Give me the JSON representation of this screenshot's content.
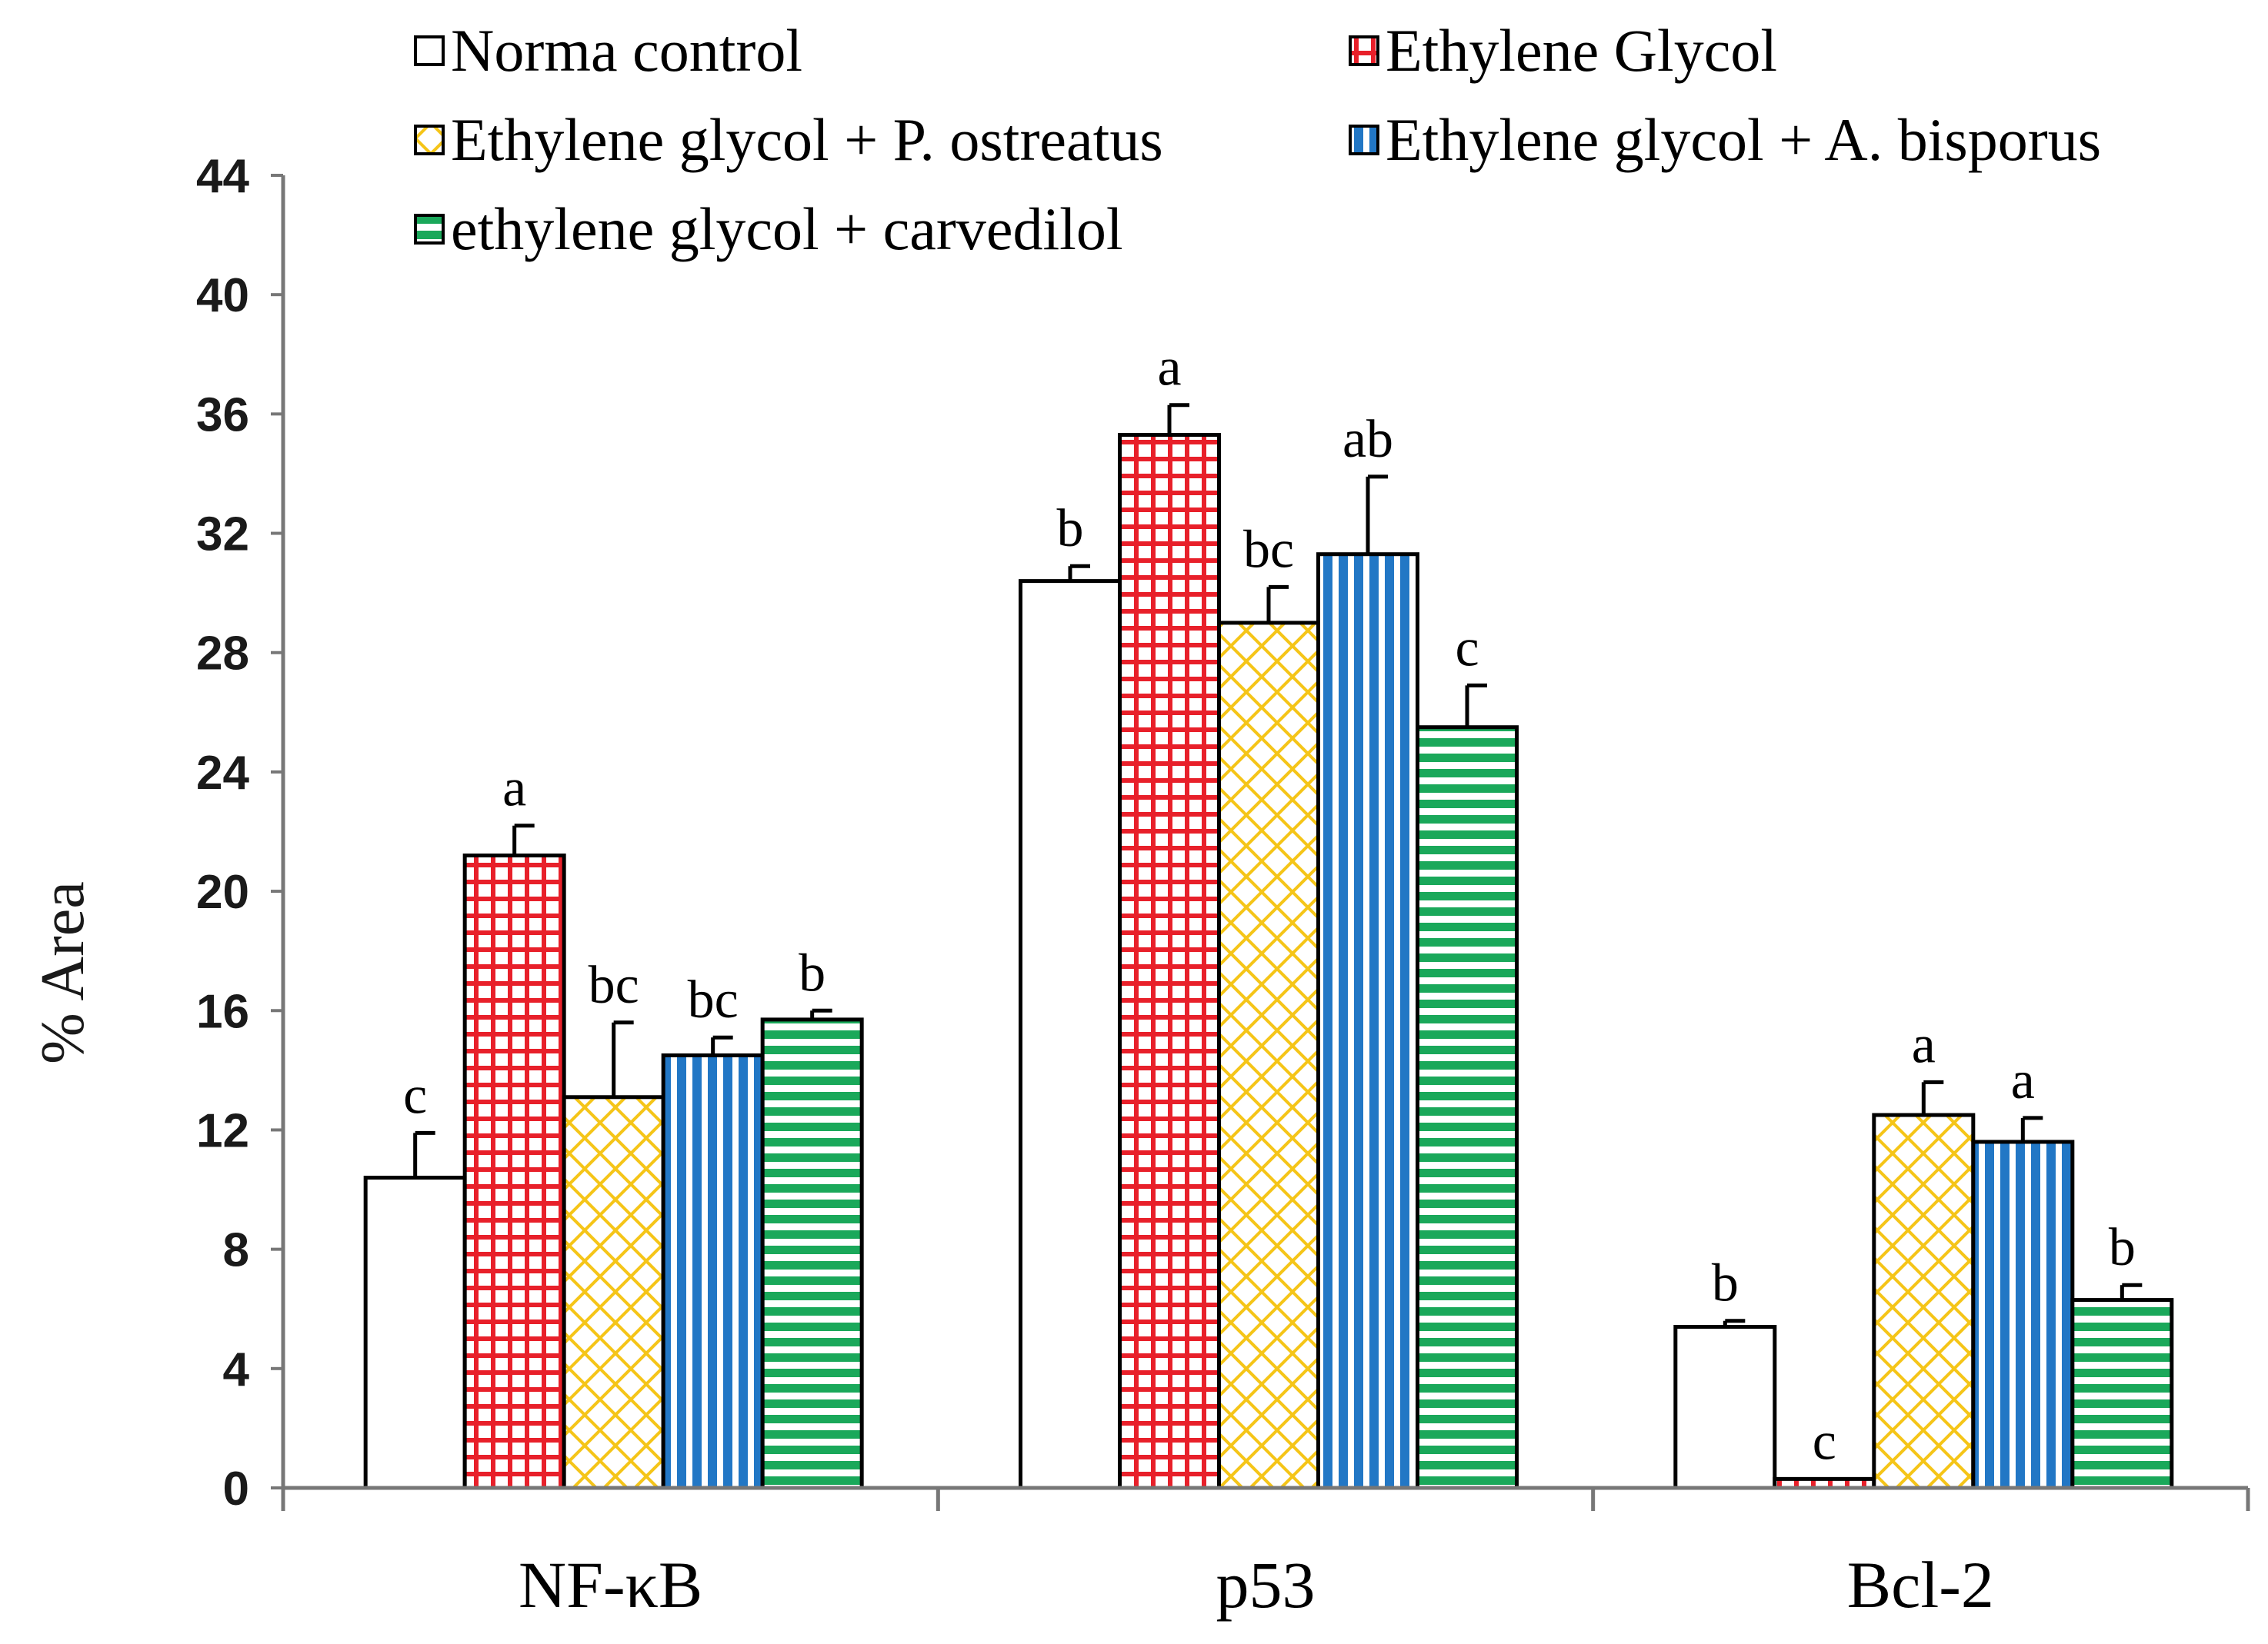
{
  "chart_data": {
    "type": "bar",
    "title": "",
    "xlabel": "",
    "ylabel": "% Area",
    "ylim": [
      0,
      44
    ],
    "yticks": [
      0,
      4,
      8,
      12,
      16,
      20,
      24,
      28,
      32,
      36,
      40,
      44
    ],
    "categories": [
      "NF-κB",
      "p53",
      "Bcl-2"
    ],
    "legend_position": "top",
    "series": [
      {
        "name": "Norma control",
        "pattern": "solid-white",
        "color": "#ffffff",
        "values": [
          10.4,
          30.4,
          5.4
        ],
        "errors": [
          1.5,
          0.5,
          0.2
        ],
        "labels": [
          "c",
          "b",
          "b"
        ]
      },
      {
        "name": "Ethylene Glycol",
        "pattern": "grid",
        "color": "#e8202a",
        "values": [
          21.2,
          35.3,
          0.3
        ],
        "errors": [
          1.0,
          1.0,
          0.0
        ],
        "labels": [
          "a",
          "a",
          "c"
        ]
      },
      {
        "name": "Ethylene glycol + P. ostreatus",
        "pattern": "diamond",
        "color": "#f5c518",
        "values": [
          13.1,
          29.0,
          12.5
        ],
        "errors": [
          2.5,
          1.2,
          1.1
        ],
        "labels": [
          "bc",
          "bc",
          "a"
        ]
      },
      {
        "name": "Ethylene glycol + A. bisporus",
        "pattern": "vertical",
        "color": "#2277c5",
        "values": [
          14.5,
          31.3,
          11.6
        ],
        "errors": [
          0.6,
          2.6,
          0.8
        ],
        "labels": [
          "bc",
          "ab",
          "a"
        ]
      },
      {
        "name": "ethylene glycol + carvedilol",
        "pattern": "horizontal",
        "color": "#1aa85a",
        "values": [
          15.7,
          25.5,
          6.3
        ],
        "errors": [
          0.3,
          1.4,
          0.5
        ],
        "labels": [
          "b",
          "c",
          "b"
        ]
      }
    ]
  }
}
